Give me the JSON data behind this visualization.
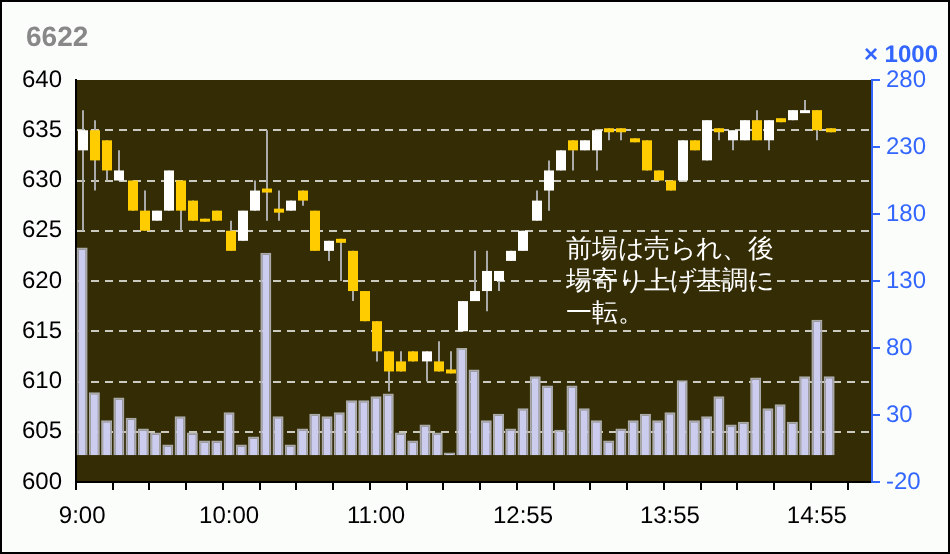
{
  "chart_data": {
    "type": "candlestick",
    "title": "6622",
    "y2label": "× 1000",
    "categories": [
      "9:00",
      null,
      null,
      null,
      null,
      null,
      null,
      null,
      null,
      null,
      null,
      null,
      "10:00",
      null,
      null,
      null,
      null,
      null,
      null,
      null,
      null,
      null,
      null,
      null,
      "11:00",
      null,
      null,
      null,
      null,
      null,
      null,
      null,
      null,
      null,
      null,
      null,
      "12:55",
      null,
      null,
      null,
      null,
      null,
      null,
      null,
      null,
      null,
      null,
      null,
      "13:55",
      null,
      null,
      null,
      null,
      null,
      null,
      null,
      null,
      null,
      null,
      null,
      "14:55",
      null,
      null,
      null,
      null
    ],
    "ohlc": [
      [
        633,
        637,
        625,
        635
      ],
      [
        635,
        636,
        629,
        632
      ],
      [
        634,
        634,
        630,
        631
      ],
      [
        630,
        633,
        630,
        631
      ],
      [
        630,
        630,
        627,
        627
      ],
      [
        627,
        629,
        625,
        625
      ],
      [
        626,
        627,
        626,
        627
      ],
      [
        627,
        631,
        627,
        631
      ],
      [
        630,
        630,
        625,
        627
      ],
      [
        628,
        628,
        626,
        626
      ],
      [
        626.2,
        626.2,
        625.9,
        625.9
      ],
      [
        627,
        627,
        626,
        626
      ],
      [
        625,
        626,
        623,
        623
      ],
      [
        624,
        627,
        624,
        627
      ],
      [
        627,
        630,
        627,
        629
      ],
      [
        629.2,
        635,
        626,
        628.8
      ],
      [
        627.2,
        629,
        626,
        626.8
      ],
      [
        627,
        628,
        627,
        628
      ],
      [
        629,
        629,
        627.5,
        628
      ],
      [
        627,
        627,
        623,
        623
      ],
      [
        623,
        624,
        622,
        624
      ],
      [
        624.2,
        624.2,
        620,
        623.8
      ],
      [
        623,
        623,
        618,
        619
      ],
      [
        619,
        619,
        616,
        616
      ],
      [
        616,
        616,
        612,
        613
      ],
      [
        613,
        613,
        609,
        611
      ],
      [
        612,
        613,
        611,
        611
      ],
      [
        613,
        613,
        612,
        612
      ],
      [
        612,
        613,
        610,
        613
      ],
      [
        612,
        614,
        611,
        611
      ],
      [
        611.2,
        613,
        610.8,
        610.8
      ],
      [
        615,
        618,
        615,
        618
      ],
      [
        618,
        623,
        618,
        619
      ],
      [
        619,
        623,
        617,
        621
      ],
      [
        620,
        621,
        619,
        621
      ],
      [
        622,
        623,
        622,
        623
      ],
      [
        623,
        625,
        623,
        625
      ],
      [
        626,
        629,
        626,
        628
      ],
      [
        629,
        632,
        627,
        631
      ],
      [
        631,
        633,
        631,
        633
      ],
      [
        634,
        634,
        631,
        633
      ],
      [
        633,
        634,
        633,
        634
      ],
      [
        633,
        635,
        631,
        635
      ],
      [
        635.2,
        635.2,
        634,
        634.8
      ],
      [
        635.2,
        635.2,
        634,
        634.8
      ],
      [
        634.2,
        634.2,
        633.8,
        633.8
      ],
      [
        634,
        634,
        631,
        631
      ],
      [
        631,
        631,
        630,
        630
      ],
      [
        630,
        630,
        629,
        629
      ],
      [
        630,
        634,
        630,
        634
      ],
      [
        634,
        634,
        633,
        633
      ],
      [
        632,
        636,
        632,
        636
      ],
      [
        635.2,
        635.2,
        634,
        634.8
      ],
      [
        634,
        635,
        633,
        635
      ],
      [
        634,
        636,
        634,
        636
      ],
      [
        636,
        637,
        634,
        634
      ],
      [
        634,
        636,
        633,
        636
      ],
      [
        636.2,
        636.2,
        635.8,
        635.8
      ],
      [
        636,
        637,
        636,
        637
      ],
      [
        636.8,
        638,
        636.8,
        637
      ],
      [
        637,
        637,
        634,
        635
      ],
      [
        635.2,
        635.2,
        634.8,
        634.8
      ],
      null,
      null,
      null
    ],
    "colors": [
      "#ffffff",
      "#ffcc00",
      "#ffcc00",
      "#ffffff",
      "#ffcc00",
      "#ffcc00",
      "#ffffff",
      "#ffffff",
      "#ffcc00",
      "#ffcc00",
      "#ffcc00",
      "#ffcc00",
      "#ffcc00",
      "#ffffff",
      "#ffffff",
      "#ffcc00",
      "#ffcc00",
      "#ffffff",
      "#ffcc00",
      "#ffcc00",
      "#ffffff",
      "#ffcc00",
      "#ffcc00",
      "#ffcc00",
      "#ffcc00",
      "#ffcc00",
      "#ffcc00",
      "#ffcc00",
      "#ffffff",
      "#ffcc00",
      "#ffcc00",
      "#ffffff",
      "#ffffff",
      "#ffffff",
      "#ffffff",
      "#ffffff",
      "#ffffff",
      "#ffffff",
      "#ffffff",
      "#ffffff",
      "#ffcc00",
      "#ffffff",
      "#ffffff",
      "#ffcc00",
      "#ffcc00",
      "#ffcc00",
      "#ffcc00",
      "#ffcc00",
      "#ffcc00",
      "#ffffff",
      "#ffcc00",
      "#ffffff",
      "#ffcc00",
      "#ffffff",
      "#ffffff",
      "#ffcc00",
      "#ffffff",
      "#ffcc00",
      "#ffffff",
      "#ffffff",
      "#ffcc00",
      "#ffcc00",
      null,
      null,
      null
    ],
    "series": [
      {
        "type": "bar",
        "axis": "y2",
        "color": "#ccccee",
        "values": [
          155,
          47,
          26,
          43,
          28,
          20,
          17,
          8,
          29,
          17,
          11,
          11,
          32,
          8,
          14,
          151,
          29,
          8,
          20,
          31,
          29,
          32,
          41,
          41,
          44,
          46,
          17,
          11,
          23,
          17,
          2,
          80,
          64,
          26,
          31,
          20,
          35,
          59,
          52,
          19,
          52,
          35,
          26,
          11,
          20,
          26,
          31,
          26,
          32,
          56,
          26,
          29,
          44,
          23,
          25,
          58,
          35,
          38,
          25,
          59,
          101,
          59,
          null,
          null,
          null
        ]
      }
    ],
    "ylim": [
      600,
      640
    ],
    "yticks": [
      600,
      605,
      610,
      615,
      620,
      625,
      630,
      635,
      640
    ],
    "y2lim": [
      -20,
      280
    ],
    "y2ticks": [
      -20,
      30,
      80,
      130,
      180,
      230,
      280
    ],
    "grid": "y",
    "annotations": [
      "前場は売られ、後場寄り上げ基調に一転。"
    ]
  }
}
